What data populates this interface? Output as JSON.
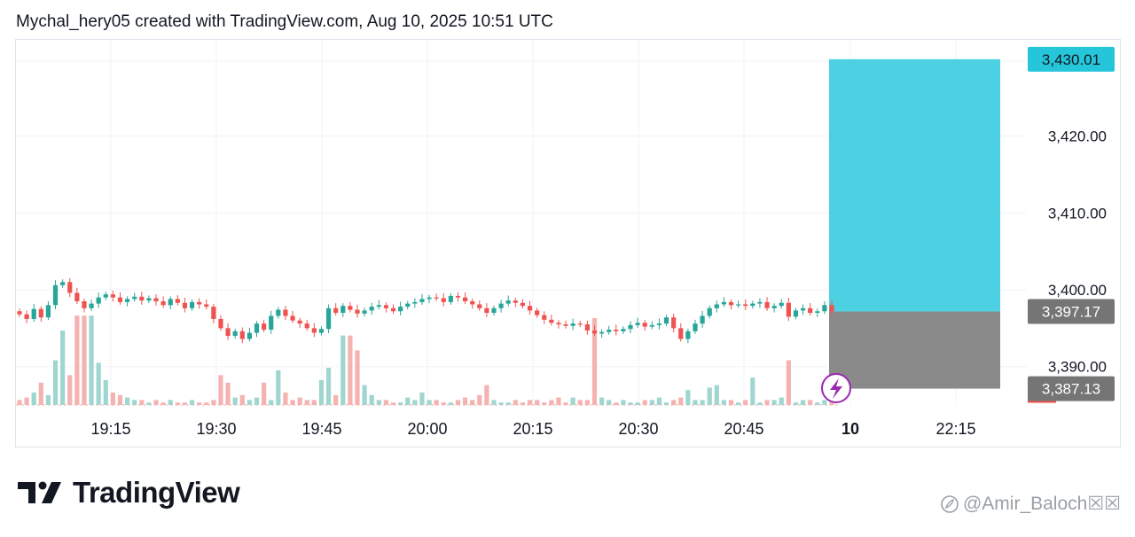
{
  "header": {
    "text": "Mychal_hery05 created with TradingView.com, Aug 10, 2025 10:51 UTC"
  },
  "footer": {
    "brand": "TradingView",
    "watermark": "@Amir_Baloch☒☒"
  },
  "colors": {
    "up": "#26a69a",
    "down": "#ef5350",
    "up_volume": "#9fd6d0",
    "down_volume": "#f4b3b1",
    "target_zone": "#4dd0e1",
    "stop_zone": "#8a8a8a",
    "grid": "#f0f3fa",
    "label_target_bg": "#26c6da",
    "label_gray_bg": "#757575"
  },
  "chart_data": {
    "type": "candlestick",
    "x_tick_labels": [
      "19:15",
      "19:30",
      "19:45",
      "20:00",
      "20:15",
      "20:30",
      "20:45",
      "10",
      "22:15"
    ],
    "y_tick_labels": [
      "3,420.00",
      "3,410.00",
      "3,400.00",
      "3,390.00"
    ],
    "y_ticks": [
      3420,
      3410,
      3400,
      3390
    ],
    "ylim": [
      3383,
      3433
    ],
    "price_labels": [
      {
        "text": "3,430.01",
        "value": 3430.01,
        "style": "target"
      },
      {
        "text": "3,397.17",
        "value": 3397.17,
        "style": "gray"
      },
      {
        "text": "3,387.13",
        "value": 3387.13,
        "style": "gray"
      }
    ],
    "position_tool": {
      "entry": 3397.17,
      "target": 3430.01,
      "stop": 3387.13
    },
    "candles_close": [
      3396.8,
      3396.2,
      3397.5,
      3396.4,
      3398.0,
      3400.6,
      3401.0,
      3399.6,
      3398.5,
      3397.6,
      3398.2,
      3399.0,
      3399.4,
      3399.0,
      3398.4,
      3398.8,
      3399.1,
      3398.6,
      3398.9,
      3398.5,
      3398.0,
      3398.8,
      3398.3,
      3397.6,
      3398.4,
      3398.1,
      3397.8,
      3396.2,
      3395.0,
      3394.0,
      3394.6,
      3393.6,
      3394.4,
      3395.6,
      3394.8,
      3396.6,
      3397.4,
      3396.6,
      3396.0,
      3395.6,
      3395.0,
      3394.4,
      3394.9,
      3397.6,
      3397.0,
      3397.9,
      3397.4,
      3396.9,
      3397.3,
      3397.8,
      3398.0,
      3397.6,
      3397.2,
      3397.8,
      3398.2,
      3398.4,
      3398.8,
      3399.0,
      3398.9,
      3398.4,
      3399.2,
      3399.0,
      3398.5,
      3398.1,
      3397.6,
      3397.0,
      3397.6,
      3398.2,
      3398.6,
      3398.3,
      3397.9,
      3397.3,
      3396.7,
      3396.1,
      3395.7,
      3395.5,
      3395.3,
      3395.6,
      3395.5,
      3394.7,
      3394.3,
      3394.5,
      3394.8,
      3394.6,
      3394.9,
      3395.4,
      3395.7,
      3395.2,
      3395.4,
      3395.6,
      3396.4,
      3395.0,
      3393.6,
      3394.6,
      3395.6,
      3396.6,
      3397.6,
      3398.1,
      3398.4,
      3398.0,
      3398.1,
      3397.9,
      3398.2,
      3398.4,
      3397.6,
      3397.9,
      3398.3,
      3396.5,
      3397.3,
      3397.6,
      3397.0,
      3397.2,
      3398.0,
      3397.17
    ],
    "volume": [
      2,
      3,
      5,
      9,
      4,
      18,
      30,
      12,
      36,
      36,
      36,
      17,
      10,
      5,
      4,
      3,
      2,
      2,
      1,
      2,
      1,
      2,
      1,
      1,
      2,
      1,
      1,
      2,
      12,
      9,
      3,
      4,
      2,
      3,
      9,
      2,
      14,
      5,
      2,
      3,
      2,
      2,
      10,
      15,
      4,
      28,
      28,
      22,
      8,
      4,
      2,
      2,
      1,
      1,
      3,
      2,
      5,
      2,
      2,
      1,
      1,
      2,
      3,
      2,
      4,
      8,
      2,
      1,
      1,
      2,
      1,
      2,
      2,
      1,
      2,
      3,
      1,
      3,
      2,
      2,
      35,
      3,
      2,
      1,
      2,
      1,
      1,
      2,
      2,
      3,
      1,
      2,
      3,
      6,
      2,
      2,
      7,
      8,
      2,
      2,
      1,
      2,
      11,
      1,
      2,
      2,
      3,
      18,
      1,
      2,
      2,
      1,
      2,
      2
    ]
  }
}
